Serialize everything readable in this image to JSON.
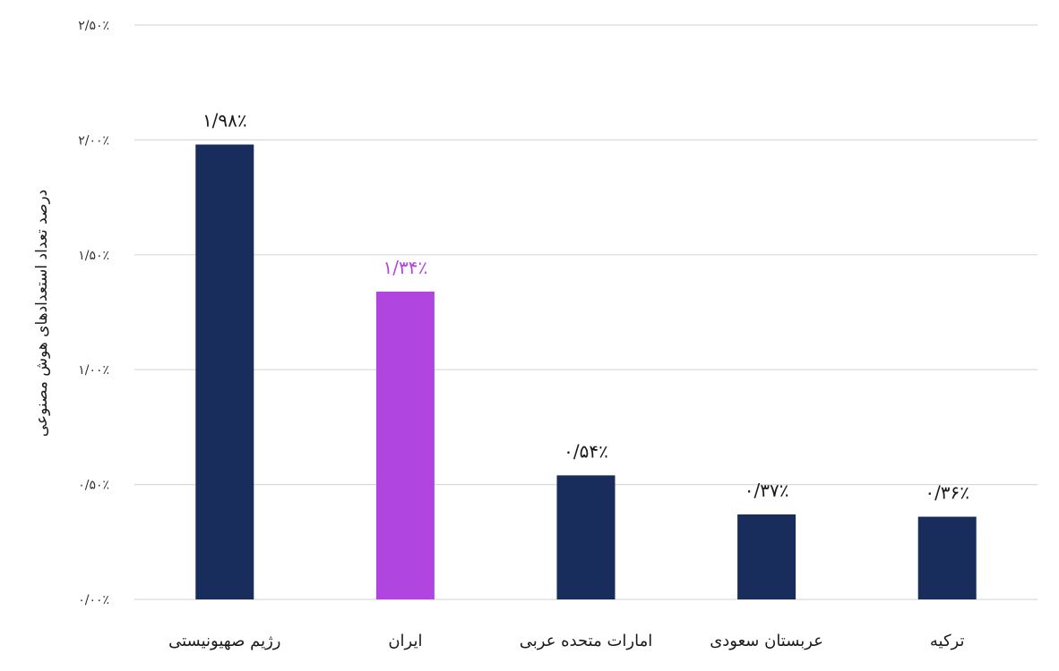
{
  "chart_data": {
    "type": "bar",
    "title": "",
    "ylabel": "درصد تعداد استعدادهای هوش مصنوعی",
    "xlabel": "",
    "categories": [
      "رژیم صهیونیستی",
      "ایران",
      "امارات متحده عربی",
      "عربستان سعودی",
      "ترکیه"
    ],
    "values": [
      1.98,
      1.34,
      0.54,
      0.37,
      0.36
    ],
    "value_labels": [
      "۱/۹۸٪",
      "۱/۳۴٪",
      "۰/۵۴٪",
      "۰/۳۷٪",
      "۰/۳۶٪"
    ],
    "ylim": [
      0,
      2.5
    ],
    "yticks": [
      0,
      0.5,
      1.0,
      1.5,
      2.0,
      2.5
    ],
    "ytick_labels": [
      "۰/۰۰٪",
      "۰/۵۰٪",
      "۱/۰۰٪",
      "۱/۵۰٪",
      "۲/۰۰٪",
      "۲/۵۰٪"
    ],
    "grid": true,
    "legend": "none",
    "colors": {
      "default_bar": "#182d5c",
      "highlight_bar": "#b145e0",
      "default_label": "#1a1a1a",
      "highlight_label": "#b145e0"
    },
    "highlight_index": 1
  }
}
